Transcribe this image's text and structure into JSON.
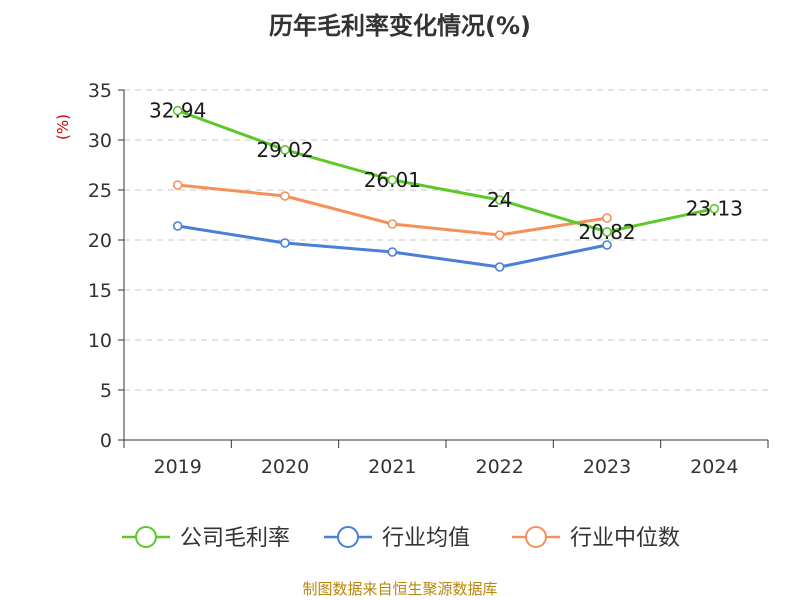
{
  "chart_data": {
    "type": "line",
    "title": "历年毛利率变化情况(%)",
    "ylabel": "(%)",
    "xlabel": "",
    "categories": [
      "2019",
      "2020",
      "2021",
      "2022",
      "2023",
      "2024"
    ],
    "ylim": [
      0,
      35
    ],
    "yticks": [
      0,
      5,
      10,
      15,
      20,
      25,
      30,
      35
    ],
    "grid": true,
    "legend_position": "bottom",
    "series": [
      {
        "name": "公司毛利率",
        "color": "#5cc928",
        "values": [
          32.94,
          29.02,
          26.01,
          24,
          20.82,
          23.13
        ],
        "labels": [
          "32.94",
          "29.02",
          "26.01",
          "24",
          "20.82",
          "23.13"
        ]
      },
      {
        "name": "行业均值",
        "color": "#4a7fd8",
        "values": [
          21.4,
          19.7,
          18.8,
          17.3,
          19.5,
          null
        ],
        "labels": []
      },
      {
        "name": "行业中位数",
        "color": "#f5905a",
        "values": [
          25.5,
          24.4,
          21.6,
          20.5,
          22.2,
          null
        ],
        "labels": []
      }
    ]
  },
  "source_text": "制图数据来自恒生聚源数据库"
}
